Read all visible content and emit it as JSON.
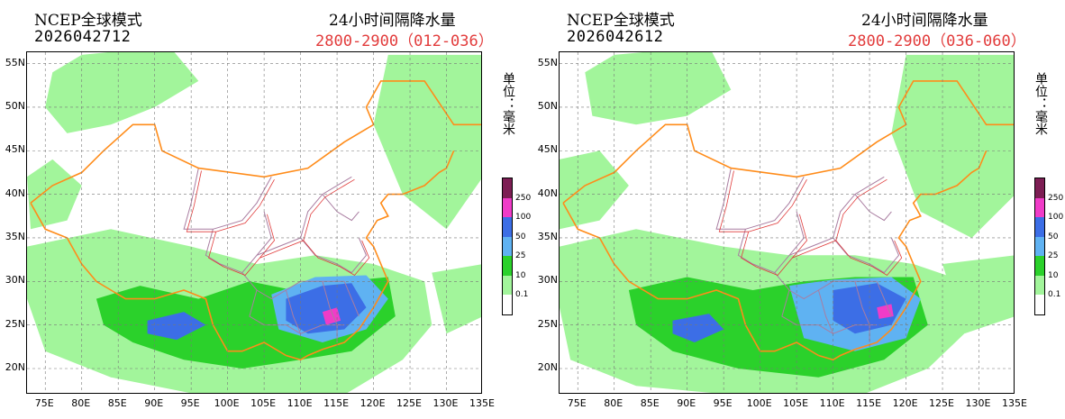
{
  "panels": [
    {
      "model": "NCEP全球模式",
      "init_time": "2026042712",
      "product": "24小时间隔降水量",
      "range": "2800-2900（012-036）",
      "unit": "单位：毫米"
    },
    {
      "model": "NCEP全球模式",
      "init_time": "2026042612",
      "product": "24小时间隔降水量",
      "range": "2800-2900（036-060）",
      "unit": "单位：毫米"
    }
  ],
  "latitude_labels": [
    "55N",
    "50N",
    "45N",
    "40N",
    "35N",
    "30N",
    "25N",
    "20N"
  ],
  "longitude_labels": [
    "75E",
    "80E",
    "85E",
    "90E",
    "95E",
    "100E",
    "105E",
    "110E",
    "115E",
    "120E",
    "125E",
    "130E",
    "135E"
  ],
  "legend": {
    "labels": [
      "250",
      "100",
      "50",
      "25",
      "10",
      "0.1"
    ],
    "colors": [
      "#7d1e54",
      "#f03cc8",
      "#3c6ee6",
      "#5fb2f2",
      "#2bd12b",
      "#a2f59b",
      "#ffffff"
    ]
  },
  "map_colors": {
    "light_green": "#a2f59b",
    "green": "#2bd12b",
    "light_blue": "#5fb2f2",
    "blue": "#3c6ee6",
    "magenta": "#f03cc8",
    "border_orange": "#ff8c1a",
    "province_red": "#e03a3a",
    "grid": "#777777"
  }
}
